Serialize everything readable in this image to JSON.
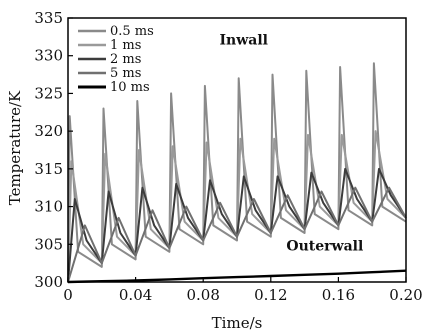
{
  "chart_data": {
    "type": "line",
    "xlabel": "Time/s",
    "ylabel": "Temperature/K",
    "xlim": [
      0,
      0.2
    ],
    "ylim": [
      300,
      335
    ],
    "xticks": [
      "0",
      "0.04",
      "0.08",
      "0.12",
      "0.16",
      "0.20"
    ],
    "xtick_values": [
      0,
      0.04,
      0.08,
      0.12,
      0.16,
      0.2
    ],
    "yticks": [
      "300",
      "305",
      "310",
      "315",
      "320",
      "325",
      "330",
      "335"
    ],
    "ytick_values": [
      300,
      305,
      310,
      315,
      320,
      325,
      330,
      335
    ],
    "legend_position": "top-left",
    "grid": false,
    "annotations": [
      {
        "text": "Inwall",
        "x": 0.104,
        "y": 331.5
      },
      {
        "text": "Outerwall",
        "x": 0.152,
        "y": 304.2
      }
    ],
    "series": [
      {
        "name": "0.5 ms",
        "color": "#8a8a8a",
        "x": [
          0,
          0.001,
          0.006,
          0.02,
          0.021,
          0.026,
          0.04,
          0.041,
          0.046,
          0.06,
          0.061,
          0.066,
          0.08,
          0.081,
          0.086,
          0.1,
          0.101,
          0.106,
          0.12,
          0.121,
          0.126,
          0.14,
          0.141,
          0.146,
          0.16,
          0.161,
          0.166,
          0.18,
          0.181,
          0.186,
          0.2
        ],
        "y": [
          300,
          322,
          304,
          302,
          323,
          305,
          303,
          324,
          306,
          304,
          325,
          307,
          305,
          326,
          307.5,
          305.5,
          327,
          308,
          306,
          327.5,
          308.5,
          306.5,
          328,
          309,
          307,
          328.5,
          309.5,
          307.5,
          329,
          310,
          308
        ]
      },
      {
        "name": "1 ms",
        "color": "#9a9a9a",
        "x": [
          0,
          0.002,
          0.009,
          0.02,
          0.022,
          0.029,
          0.04,
          0.042,
          0.049,
          0.06,
          0.062,
          0.069,
          0.08,
          0.082,
          0.089,
          0.1,
          0.102,
          0.109,
          0.12,
          0.122,
          0.129,
          0.14,
          0.142,
          0.149,
          0.16,
          0.162,
          0.169,
          0.18,
          0.182,
          0.189,
          0.2
        ],
        "y": [
          300,
          316,
          305,
          302.5,
          317,
          306,
          303.5,
          317.5,
          307,
          304.5,
          318,
          308,
          305.5,
          318.5,
          308.5,
          306,
          319,
          309,
          306.5,
          319,
          309.5,
          307,
          319.5,
          310,
          307.5,
          319.5,
          310.5,
          308,
          320,
          311,
          308.5
        ]
      },
      {
        "name": "2 ms",
        "color": "#3c3c3c",
        "x": [
          0,
          0.004,
          0.011,
          0.02,
          0.024,
          0.031,
          0.04,
          0.044,
          0.051,
          0.06,
          0.064,
          0.071,
          0.08,
          0.084,
          0.091,
          0.1,
          0.104,
          0.111,
          0.12,
          0.124,
          0.131,
          0.14,
          0.144,
          0.151,
          0.16,
          0.164,
          0.171,
          0.18,
          0.184,
          0.191,
          0.2
        ],
        "y": [
          300,
          311,
          305.5,
          302.5,
          312,
          306.5,
          303.5,
          312.5,
          307.5,
          304.5,
          313,
          308.5,
          305.5,
          313.5,
          309,
          306,
          314,
          309.5,
          306.5,
          314,
          310,
          307,
          314.5,
          310.5,
          307.5,
          315,
          311,
          308,
          315,
          311.5,
          308.5
        ]
      },
      {
        "name": "5 ms",
        "color": "#707070",
        "x": [
          0,
          0.01,
          0.02,
          0.03,
          0.04,
          0.05,
          0.06,
          0.07,
          0.08,
          0.09,
          0.1,
          0.11,
          0.12,
          0.13,
          0.14,
          0.15,
          0.16,
          0.17,
          0.18,
          0.19,
          0.2
        ],
        "y": [
          300,
          307.5,
          302.5,
          308.5,
          303.5,
          309.5,
          304.5,
          310,
          305.5,
          310.5,
          306,
          311,
          306.5,
          311.5,
          307,
          312,
          307.5,
          312.5,
          308,
          312.5,
          308.5
        ]
      },
      {
        "name": "10 ms",
        "color": "#000000",
        "x": [
          0,
          0.02,
          0.04,
          0.06,
          0.08,
          0.1,
          0.12,
          0.14,
          0.16,
          0.18,
          0.2
        ],
        "y": [
          300,
          300.1,
          300.2,
          300.35,
          300.5,
          300.65,
          300.8,
          300.95,
          301.1,
          301.3,
          301.5
        ]
      }
    ]
  }
}
